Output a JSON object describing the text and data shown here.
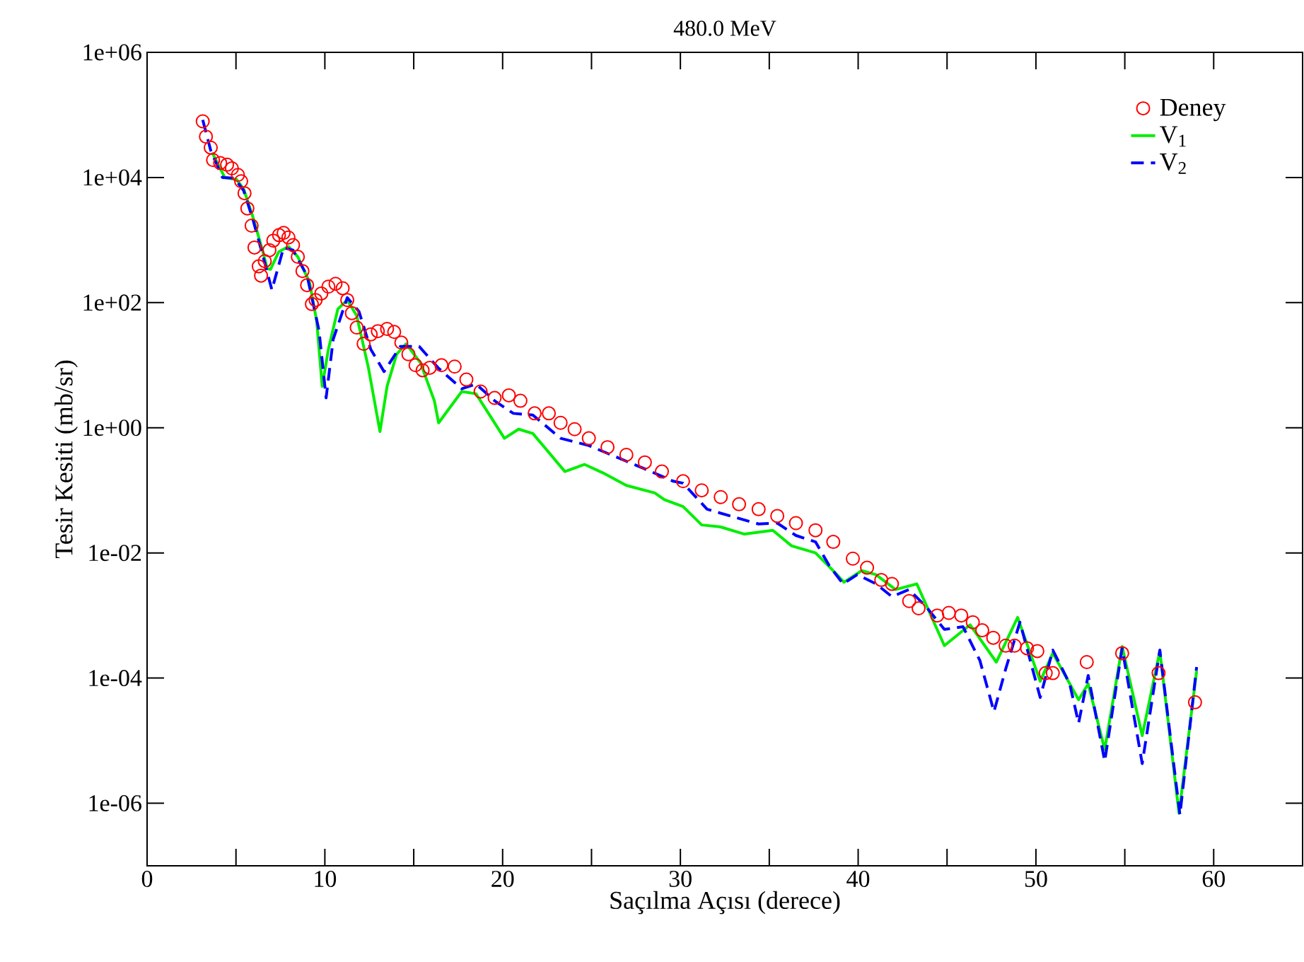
{
  "chart_data": {
    "type": "line",
    "title": "480.0 MeV",
    "xlabel": "Saçılma Açısı (derece)",
    "ylabel": "Tesir Kesiti (mb/sr)",
    "xlim": [
      0,
      65
    ],
    "ylim": [
      1e-07,
      1000000.0
    ],
    "log": "y",
    "legend": "top right",
    "xticks": [
      0,
      {
        "value": 5,
        "label": null
      },
      10,
      {
        "value": 15,
        "label": null
      },
      20,
      {
        "value": 25,
        "label": null
      },
      30,
      {
        "value": 35,
        "label": null
      },
      40,
      {
        "value": 45,
        "label": null
      },
      50,
      {
        "value": 55,
        "label": null
      },
      60
    ],
    "yticks": [
      {
        "value": 1e-06,
        "label": "1e-06"
      },
      {
        "value": 0.0001,
        "label": "1e-04"
      },
      {
        "value": 0.01,
        "label": "1e-02"
      },
      {
        "value": 1,
        "label": "1e+00"
      },
      {
        "value": 100,
        "label": "1e+02"
      },
      {
        "value": 10000,
        "label": "1e+04"
      },
      {
        "value": 1000000,
        "label": "1e+06"
      }
    ],
    "series": [
      {
        "name": "Deney",
        "type": "scatter",
        "marker": "circle",
        "color": "#ff0000",
        "x": [
          3.13,
          3.31,
          3.58,
          3.71,
          4.11,
          4.5,
          4.77,
          5.11,
          5.29,
          5.48,
          5.64,
          5.88,
          6.04,
          6.28,
          6.41,
          6.62,
          6.88,
          7.1,
          7.42,
          7.68,
          7.95,
          8.21,
          8.48,
          8.74,
          9.0,
          9.27,
          9.48,
          9.8,
          10.2,
          10.6,
          11.0,
          11.26,
          11.52,
          11.79,
          12.18,
          12.58,
          12.98,
          13.5,
          13.9,
          14.3,
          14.7,
          15.1,
          15.5,
          15.9,
          16.56,
          17.3,
          17.96,
          18.76,
          19.55,
          20.35,
          21.0,
          21.8,
          22.6,
          23.26,
          24.05,
          24.85,
          25.9,
          26.96,
          28.0,
          28.96,
          30.15,
          31.2,
          32.27,
          33.3,
          34.4,
          35.45,
          36.5,
          37.6,
          38.6,
          39.7,
          40.5,
          41.3,
          41.9,
          42.87,
          43.4,
          44.45,
          45.1,
          45.8,
          46.45,
          46.98,
          47.6,
          48.3,
          48.8,
          49.5,
          50.08,
          50.55,
          50.95,
          52.86,
          54.85,
          56.9,
          58.95
        ],
        "values": [
          79000,
          45000,
          30000,
          19000,
          17000,
          16000,
          14000,
          11000,
          8700,
          5600,
          3200,
          1700,
          760,
          380,
          270,
          460,
          690,
          980,
          1200,
          1300,
          1100,
          830,
          540,
          320,
          190,
          95,
          110,
          140,
          180,
          200,
          170,
          110,
          68,
          40,
          22,
          31,
          35,
          38,
          34,
          23,
          15,
          10,
          8.3,
          9.1,
          10,
          9.5,
          5.9,
          3.8,
          3.0,
          3.3,
          2.7,
          1.7,
          1.7,
          1.2,
          0.95,
          0.68,
          0.49,
          0.37,
          0.28,
          0.2,
          0.14,
          0.1,
          0.078,
          0.06,
          0.05,
          0.039,
          0.03,
          0.023,
          0.015,
          0.0081,
          0.0058,
          0.0037,
          0.0032,
          0.0017,
          0.0013,
          0.001,
          0.0011,
          0.001,
          0.00078,
          0.00058,
          0.00044,
          0.00033,
          0.00033,
          0.0003,
          0.00027,
          0.00012,
          0.00012,
          0.00018,
          0.00025,
          0.00012,
          4.1e-05
        ]
      },
      {
        "name": "V$_{1}$",
        "line_style": "solid",
        "color": "#00ee00",
        "x": [
          3.66,
          4.37,
          5.03,
          5.43,
          5.96,
          6.49,
          6.76,
          6.94,
          7.41,
          7.95,
          8.48,
          9.14,
          9.54,
          9.85,
          10.2,
          10.73,
          11.26,
          11.79,
          12.45,
          13.1,
          13.5,
          14.04,
          14.57,
          15.37,
          16.16,
          16.4,
          17.7,
          18.5,
          20.1,
          20.9,
          21.7,
          23.5,
          24.6,
          25.65,
          26.96,
          28.56,
          29.1,
          30.15,
          31.2,
          32.27,
          33.6,
          35.2,
          36.25,
          37.6,
          38.6,
          39.2,
          40.2,
          41.0,
          42.1,
          43.3,
          44.85,
          46.3,
          47.77,
          48.97,
          50.24,
          50.95,
          52.4,
          52.94,
          53.87,
          54.85,
          55.98,
          56.97,
          58.05,
          59.04
        ],
        "values": [
          25000,
          10000,
          9300,
          6600,
          2300,
          690,
          350,
          340,
          650,
          790,
          540,
          210,
          51,
          4.6,
          18,
          79,
          110,
          62,
          9.1,
          0.87,
          4.6,
          15,
          22,
          11,
          2.7,
          1.2,
          3.8,
          3.5,
          0.68,
          0.95,
          0.81,
          0.2,
          0.26,
          0.19,
          0.12,
          0.091,
          0.071,
          0.055,
          0.028,
          0.026,
          0.02,
          0.023,
          0.013,
          0.01,
          0.0052,
          0.0034,
          0.0052,
          0.0045,
          0.0026,
          0.0032,
          0.00033,
          0.00071,
          0.00018,
          0.00093,
          8.9e-05,
          0.00025,
          4.5e-05,
          8.1e-05,
          7.2e-06,
          0.00032,
          1.2e-05,
          0.00027,
          6.9e-07,
          0.00013
        ]
      },
      {
        "name": "V$_{2}$",
        "line_style": "dashed",
        "color": "#0000ff",
        "x": [
          3.13,
          3.58,
          4.24,
          4.9,
          5.43,
          5.96,
          6.49,
          7.02,
          7.68,
          8.21,
          9.0,
          9.67,
          10.07,
          10.47,
          11.26,
          11.92,
          12.58,
          13.33,
          14.25,
          15.3,
          16.37,
          17.7,
          18.5,
          19.55,
          20.6,
          21.7,
          23.26,
          24.85,
          26.4,
          28.0,
          29.6,
          30.15,
          31.5,
          32.8,
          34.4,
          35.45,
          36.5,
          37.6,
          38.37,
          39.15,
          39.95,
          41.0,
          41.9,
          42.87,
          43.9,
          44.85,
          45.9,
          46.85,
          47.64,
          48.3,
          49.1,
          50.24,
          50.95,
          51.9,
          52.4,
          52.94,
          53.87,
          54.85,
          55.98,
          56.97,
          58.1,
          59.04
        ],
        "values": [
          83000,
          27000,
          10000,
          9800,
          6200,
          2100,
          590,
          160,
          760,
          690,
          270,
          36,
          3.0,
          26,
          120,
          72,
          18,
          7.9,
          20,
          20,
          9.1,
          4.2,
          5.0,
          2.7,
          1.7,
          1.6,
          0.68,
          0.52,
          0.34,
          0.22,
          0.14,
          0.13,
          0.05,
          0.039,
          0.029,
          0.03,
          0.019,
          0.015,
          0.0063,
          0.0032,
          0.0045,
          0.0032,
          0.002,
          0.0026,
          0.0013,
          0.0006,
          0.00066,
          0.00019,
          2.9e-05,
          0.00014,
          0.00078,
          4.9e-05,
          0.00028,
          8.1e-05,
          1.9e-05,
          0.00011,
          4.7e-06,
          0.0003,
          4.3e-06,
          0.00028,
          6.5e-07,
          0.00015
        ]
      }
    ]
  }
}
